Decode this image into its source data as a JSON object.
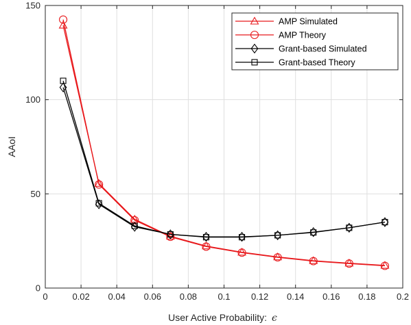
{
  "chart_data": {
    "type": "line",
    "title": "",
    "xlabel": "User Active Probability:",
    "xlabel_symbol": "ϵ",
    "ylabel": "AAoI",
    "xlim": [
      0,
      0.2
    ],
    "ylim": [
      0,
      150
    ],
    "xticks": [
      0,
      0.02,
      0.04,
      0.06,
      0.08,
      0.1,
      0.12,
      0.14,
      0.16,
      0.18,
      0.2
    ],
    "xtick_labels": [
      "0",
      "0.02",
      "0.04",
      "0.06",
      "0.08",
      "0.1",
      "0.12",
      "0.14",
      "0.16",
      "0.18",
      "0.2"
    ],
    "yticks": [
      0,
      50,
      100,
      150
    ],
    "ytick_labels": [
      "0",
      "50",
      "100",
      "150"
    ],
    "grid": true,
    "legend_position": "top-right",
    "x": [
      0.01,
      0.03,
      0.05,
      0.07,
      0.09,
      0.11,
      0.13,
      0.15,
      0.17,
      0.19
    ],
    "series": [
      {
        "name": "AMP Simulated",
        "color": "#e8191c",
        "marker": "triangle",
        "values": [
          139.5,
          55.5,
          36.5,
          27.5,
          22.3,
          19.0,
          16.5,
          14.5,
          13.2,
          12.0
        ]
      },
      {
        "name": "AMP Theory",
        "color": "#e8191c",
        "marker": "circle",
        "values": [
          142.5,
          55.0,
          36.0,
          27.2,
          22.0,
          18.8,
          16.3,
          14.3,
          13.0,
          11.8
        ]
      },
      {
        "name": "Grant-based Simulated",
        "color": "#000000",
        "marker": "diamond",
        "values": [
          106.5,
          44.5,
          32.5,
          28.5,
          27.2,
          27.2,
          28.0,
          29.7,
          32.0,
          35.0
        ]
      },
      {
        "name": "Grant-based Theory",
        "color": "#000000",
        "marker": "square",
        "values": [
          110.0,
          45.0,
          33.0,
          28.5,
          27.0,
          27.0,
          28.0,
          29.5,
          32.0,
          35.0
        ]
      }
    ]
  }
}
